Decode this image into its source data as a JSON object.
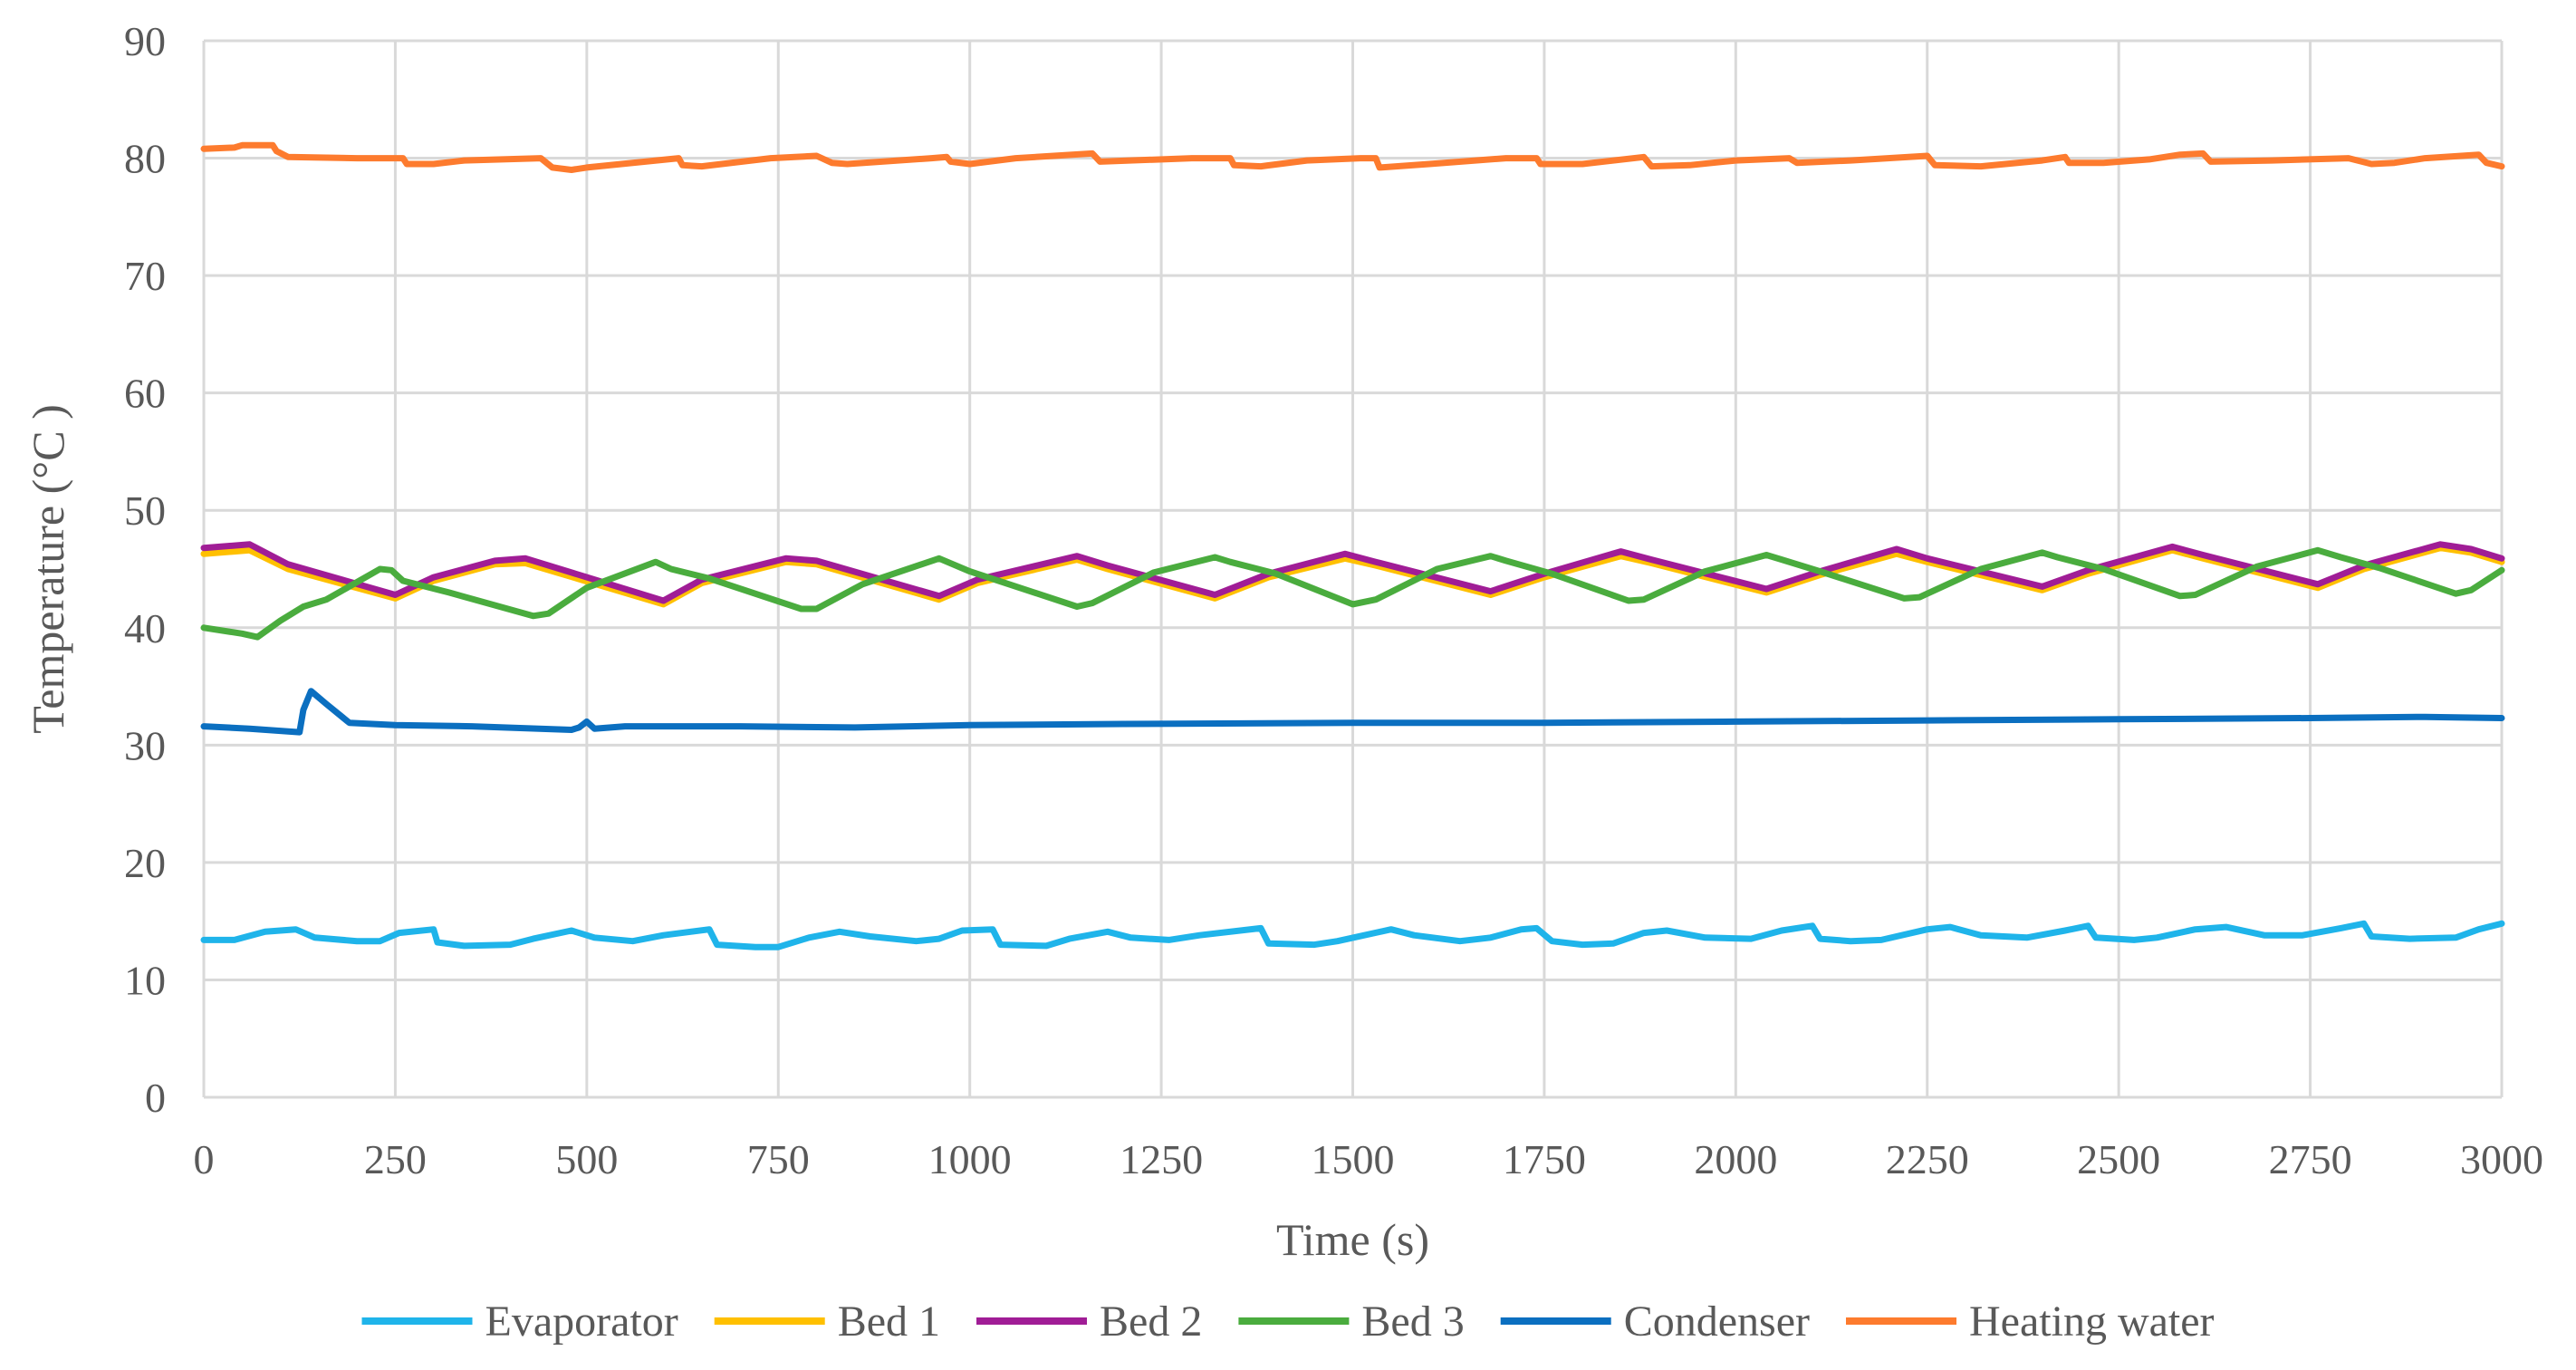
{
  "chart_data": {
    "type": "line",
    "title": "",
    "xlabel": "Time  (s)",
    "ylabel": "Temperature  (°C )",
    "xlim": [
      0,
      3000
    ],
    "ylim": [
      0,
      90
    ],
    "x_ticks": [
      "0",
      "250",
      "500",
      "750",
      "1000",
      "1250",
      "1500",
      "1750",
      "2000",
      "2250",
      "2500",
      "2750",
      "3000"
    ],
    "y_ticks": [
      "0",
      "10",
      "20",
      "30",
      "40",
      "50",
      "60",
      "70",
      "80",
      "90"
    ],
    "grid": true,
    "legend_position": "bottom",
    "series": [
      {
        "name": "Evaporator",
        "color": "#1fb4ea",
        "points": [
          [
            0,
            13.4
          ],
          [
            40,
            13.4
          ],
          [
            80,
            14.1
          ],
          [
            120,
            14.3
          ],
          [
            145,
            13.6
          ],
          [
            200,
            13.3
          ],
          [
            230,
            13.3
          ],
          [
            255,
            14.0
          ],
          [
            300,
            14.3
          ],
          [
            305,
            13.2
          ],
          [
            340,
            12.9
          ],
          [
            400,
            13.0
          ],
          [
            430,
            13.5
          ],
          [
            480,
            14.2
          ],
          [
            510,
            13.6
          ],
          [
            560,
            13.3
          ],
          [
            600,
            13.8
          ],
          [
            660,
            14.3
          ],
          [
            670,
            13.0
          ],
          [
            720,
            12.8
          ],
          [
            750,
            12.8
          ],
          [
            790,
            13.6
          ],
          [
            830,
            14.1
          ],
          [
            870,
            13.7
          ],
          [
            930,
            13.3
          ],
          [
            960,
            13.5
          ],
          [
            990,
            14.2
          ],
          [
            1030,
            14.3
          ],
          [
            1040,
            13.0
          ],
          [
            1100,
            12.9
          ],
          [
            1130,
            13.5
          ],
          [
            1180,
            14.1
          ],
          [
            1210,
            13.6
          ],
          [
            1260,
            13.4
          ],
          [
            1300,
            13.8
          ],
          [
            1380,
            14.4
          ],
          [
            1390,
            13.1
          ],
          [
            1450,
            13.0
          ],
          [
            1480,
            13.3
          ],
          [
            1550,
            14.3
          ],
          [
            1580,
            13.8
          ],
          [
            1640,
            13.3
          ],
          [
            1680,
            13.6
          ],
          [
            1720,
            14.3
          ],
          [
            1740,
            14.4
          ],
          [
            1760,
            13.3
          ],
          [
            1800,
            13.0
          ],
          [
            1840,
            13.1
          ],
          [
            1880,
            14.0
          ],
          [
            1910,
            14.2
          ],
          [
            1960,
            13.6
          ],
          [
            2020,
            13.5
          ],
          [
            2060,
            14.2
          ],
          [
            2100,
            14.6
          ],
          [
            2110,
            13.5
          ],
          [
            2150,
            13.3
          ],
          [
            2190,
            13.4
          ],
          [
            2250,
            14.3
          ],
          [
            2280,
            14.5
          ],
          [
            2320,
            13.8
          ],
          [
            2380,
            13.6
          ],
          [
            2430,
            14.2
          ],
          [
            2460,
            14.6
          ],
          [
            2470,
            13.6
          ],
          [
            2520,
            13.4
          ],
          [
            2550,
            13.6
          ],
          [
            2600,
            14.3
          ],
          [
            2640,
            14.5
          ],
          [
            2690,
            13.8
          ],
          [
            2740,
            13.8
          ],
          [
            2790,
            14.4
          ],
          [
            2820,
            14.8
          ],
          [
            2830,
            13.7
          ],
          [
            2880,
            13.5
          ],
          [
            2940,
            13.6
          ],
          [
            2970,
            14.3
          ],
          [
            3000,
            14.8
          ]
        ]
      },
      {
        "name": "Bed 1",
        "color": "#ffc000",
        "points": [
          [
            0,
            46.3
          ],
          [
            60,
            46.6
          ],
          [
            110,
            45.0
          ],
          [
            250,
            42.5
          ],
          [
            300,
            44.0
          ],
          [
            380,
            45.4
          ],
          [
            420,
            45.5
          ],
          [
            600,
            42.0
          ],
          [
            650,
            43.8
          ],
          [
            760,
            45.6
          ],
          [
            800,
            45.4
          ],
          [
            960,
            42.4
          ],
          [
            1010,
            43.8
          ],
          [
            1140,
            45.8
          ],
          [
            1180,
            45.0
          ],
          [
            1320,
            42.5
          ],
          [
            1390,
            44.3
          ],
          [
            1490,
            45.9
          ],
          [
            1530,
            45.3
          ],
          [
            1680,
            42.8
          ],
          [
            1750,
            44.3
          ],
          [
            1850,
            46.1
          ],
          [
            1890,
            45.5
          ],
          [
            2040,
            43.0
          ],
          [
            2110,
            44.5
          ],
          [
            2210,
            46.3
          ],
          [
            2250,
            45.6
          ],
          [
            2400,
            43.2
          ],
          [
            2460,
            44.6
          ],
          [
            2570,
            46.6
          ],
          [
            2610,
            45.9
          ],
          [
            2760,
            43.4
          ],
          [
            2820,
            45.0
          ],
          [
            2920,
            46.8
          ],
          [
            2960,
            46.4
          ],
          [
            3000,
            45.6
          ]
        ]
      },
      {
        "name": "Bed 2",
        "color": "#a01d96",
        "points": [
          [
            0,
            46.8
          ],
          [
            60,
            47.1
          ],
          [
            110,
            45.4
          ],
          [
            250,
            42.8
          ],
          [
            300,
            44.3
          ],
          [
            380,
            45.7
          ],
          [
            420,
            45.9
          ],
          [
            600,
            42.3
          ],
          [
            650,
            44.1
          ],
          [
            760,
            45.9
          ],
          [
            800,
            45.7
          ],
          [
            960,
            42.7
          ],
          [
            1010,
            44.1
          ],
          [
            1140,
            46.1
          ],
          [
            1180,
            45.3
          ],
          [
            1320,
            42.8
          ],
          [
            1390,
            44.6
          ],
          [
            1490,
            46.3
          ],
          [
            1530,
            45.6
          ],
          [
            1680,
            43.1
          ],
          [
            1750,
            44.6
          ],
          [
            1850,
            46.5
          ],
          [
            1890,
            45.8
          ],
          [
            2040,
            43.3
          ],
          [
            2110,
            44.8
          ],
          [
            2210,
            46.7
          ],
          [
            2250,
            45.9
          ],
          [
            2400,
            43.5
          ],
          [
            2460,
            44.9
          ],
          [
            2570,
            46.9
          ],
          [
            2610,
            46.2
          ],
          [
            2760,
            43.7
          ],
          [
            2820,
            45.3
          ],
          [
            2920,
            47.1
          ],
          [
            2960,
            46.7
          ],
          [
            3000,
            45.9
          ]
        ]
      },
      {
        "name": "Bed 3",
        "color": "#4aac3e",
        "points": [
          [
            0,
            40.0
          ],
          [
            50,
            39.5
          ],
          [
            70,
            39.2
          ],
          [
            100,
            40.6
          ],
          [
            130,
            41.8
          ],
          [
            160,
            42.4
          ],
          [
            230,
            45.0
          ],
          [
            245,
            44.9
          ],
          [
            260,
            44.0
          ],
          [
            320,
            43.0
          ],
          [
            430,
            41.0
          ],
          [
            450,
            41.2
          ],
          [
            500,
            43.4
          ],
          [
            590,
            45.6
          ],
          [
            610,
            45.0
          ],
          [
            660,
            44.2
          ],
          [
            780,
            41.6
          ],
          [
            800,
            41.6
          ],
          [
            860,
            43.7
          ],
          [
            960,
            45.9
          ],
          [
            1000,
            44.8
          ],
          [
            1140,
            41.8
          ],
          [
            1160,
            42.1
          ],
          [
            1240,
            44.7
          ],
          [
            1320,
            46.0
          ],
          [
            1340,
            45.6
          ],
          [
            1400,
            44.6
          ],
          [
            1500,
            42.0
          ],
          [
            1530,
            42.4
          ],
          [
            1610,
            45.0
          ],
          [
            1680,
            46.1
          ],
          [
            1700,
            45.7
          ],
          [
            1760,
            44.6
          ],
          [
            1860,
            42.3
          ],
          [
            1880,
            42.4
          ],
          [
            1960,
            44.8
          ],
          [
            2040,
            46.2
          ],
          [
            2060,
            45.8
          ],
          [
            2110,
            44.8
          ],
          [
            2220,
            42.5
          ],
          [
            2240,
            42.6
          ],
          [
            2320,
            45.0
          ],
          [
            2400,
            46.4
          ],
          [
            2420,
            46.0
          ],
          [
            2480,
            45.0
          ],
          [
            2580,
            42.7
          ],
          [
            2600,
            42.8
          ],
          [
            2680,
            45.2
          ],
          [
            2760,
            46.6
          ],
          [
            2790,
            46.0
          ],
          [
            2840,
            45.1
          ],
          [
            2940,
            42.9
          ],
          [
            2960,
            43.2
          ],
          [
            3000,
            44.9
          ]
        ]
      },
      {
        "name": "Condenser",
        "color": "#0b6fc0",
        "points": [
          [
            0,
            31.6
          ],
          [
            60,
            31.4
          ],
          [
            125,
            31.1
          ],
          [
            130,
            33.0
          ],
          [
            140,
            34.6
          ],
          [
            160,
            33.5
          ],
          [
            190,
            31.9
          ],
          [
            250,
            31.7
          ],
          [
            350,
            31.6
          ],
          [
            480,
            31.3
          ],
          [
            490,
            31.5
          ],
          [
            500,
            32.0
          ],
          [
            510,
            31.4
          ],
          [
            550,
            31.6
          ],
          [
            700,
            31.6
          ],
          [
            850,
            31.5
          ],
          [
            1000,
            31.7
          ],
          [
            1200,
            31.8
          ],
          [
            1500,
            31.9
          ],
          [
            1750,
            31.9
          ],
          [
            2000,
            32.0
          ],
          [
            2250,
            32.1
          ],
          [
            2500,
            32.2
          ],
          [
            2750,
            32.3
          ],
          [
            2900,
            32.4
          ],
          [
            3000,
            32.3
          ]
        ]
      },
      {
        "name": "Heating water",
        "color": "#fd7b2e",
        "points": [
          [
            0,
            80.8
          ],
          [
            40,
            80.9
          ],
          [
            50,
            81.1
          ],
          [
            90,
            81.1
          ],
          [
            95,
            80.6
          ],
          [
            110,
            80.1
          ],
          [
            200,
            80.0
          ],
          [
            260,
            80.0
          ],
          [
            265,
            79.5
          ],
          [
            300,
            79.5
          ],
          [
            340,
            79.8
          ],
          [
            440,
            80.0
          ],
          [
            455,
            79.2
          ],
          [
            480,
            79.0
          ],
          [
            500,
            79.2
          ],
          [
            620,
            80.0
          ],
          [
            625,
            79.4
          ],
          [
            650,
            79.3
          ],
          [
            740,
            80.0
          ],
          [
            800,
            80.2
          ],
          [
            820,
            79.6
          ],
          [
            840,
            79.5
          ],
          [
            950,
            80.0
          ],
          [
            970,
            80.1
          ],
          [
            975,
            79.7
          ],
          [
            1000,
            79.5
          ],
          [
            1060,
            80.0
          ],
          [
            1160,
            80.4
          ],
          [
            1170,
            79.7
          ],
          [
            1290,
            80.0
          ],
          [
            1340,
            80.0
          ],
          [
            1345,
            79.4
          ],
          [
            1380,
            79.3
          ],
          [
            1440,
            79.8
          ],
          [
            1510,
            80.0
          ],
          [
            1530,
            80.0
          ],
          [
            1535,
            79.2
          ],
          [
            1600,
            79.5
          ],
          [
            1700,
            80.0
          ],
          [
            1740,
            80.0
          ],
          [
            1745,
            79.5
          ],
          [
            1800,
            79.5
          ],
          [
            1880,
            80.1
          ],
          [
            1890,
            79.3
          ],
          [
            1940,
            79.4
          ],
          [
            2000,
            79.8
          ],
          [
            2070,
            80.0
          ],
          [
            2080,
            79.6
          ],
          [
            2150,
            79.8
          ],
          [
            2250,
            80.2
          ],
          [
            2260,
            79.4
          ],
          [
            2320,
            79.3
          ],
          [
            2400,
            79.8
          ],
          [
            2430,
            80.1
          ],
          [
            2435,
            79.6
          ],
          [
            2480,
            79.6
          ],
          [
            2540,
            79.9
          ],
          [
            2580,
            80.3
          ],
          [
            2610,
            80.4
          ],
          [
            2620,
            79.7
          ],
          [
            2700,
            79.8
          ],
          [
            2800,
            80.0
          ],
          [
            2830,
            79.5
          ],
          [
            2860,
            79.6
          ],
          [
            2900,
            80.0
          ],
          [
            2970,
            80.3
          ],
          [
            2980,
            79.6
          ],
          [
            3000,
            79.3
          ]
        ]
      }
    ]
  }
}
